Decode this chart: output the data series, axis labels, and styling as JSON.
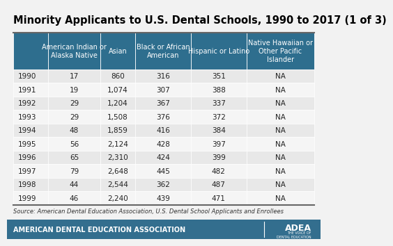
{
  "title": "Minority Applicants to U.S. Dental Schools, 1990 to 2017 (1 of 3)",
  "col_headers": [
    "",
    "American Indian or\nAlaska Native",
    "Asian",
    "Black or African\nAmerican",
    "Hispanic or Latino",
    "Native Hawaiian or\nOther Pacific\nIslander"
  ],
  "rows": [
    [
      "1990",
      "17",
      "860",
      "316",
      "351",
      "NA"
    ],
    [
      "1991",
      "19",
      "1,074",
      "307",
      "388",
      "NA"
    ],
    [
      "1992",
      "29",
      "1,204",
      "367",
      "337",
      "NA"
    ],
    [
      "1993",
      "29",
      "1,508",
      "376",
      "372",
      "NA"
    ],
    [
      "1994",
      "48",
      "1,859",
      "416",
      "384",
      "NA"
    ],
    [
      "1995",
      "56",
      "2,124",
      "428",
      "397",
      "NA"
    ],
    [
      "1996",
      "65",
      "2,310",
      "424",
      "399",
      "NA"
    ],
    [
      "1997",
      "79",
      "2,648",
      "445",
      "482",
      "NA"
    ],
    [
      "1998",
      "44",
      "2,544",
      "362",
      "487",
      "NA"
    ],
    [
      "1999",
      "46",
      "2,240",
      "439",
      "471",
      "NA"
    ]
  ],
  "source_text": "Source: American Dental Education Association, U.S. Dental School Applicants and Enrollees",
  "footer_text": "AMERICAN DENTAL EDUCATION ASSOCIATION",
  "header_bg_color": "#2e6e8e",
  "header_text_color": "#ffffff",
  "row_colors": [
    "#e8e8e8",
    "#f5f5f5"
  ],
  "footer_bg_color": "#336e8e",
  "footer_text_color": "#ffffff",
  "border_color": "#666666",
  "title_fontsize": 10.5,
  "header_fontsize": 7.0,
  "cell_fontsize": 7.5,
  "source_fontsize": 6.0,
  "footer_fontsize": 7.0
}
